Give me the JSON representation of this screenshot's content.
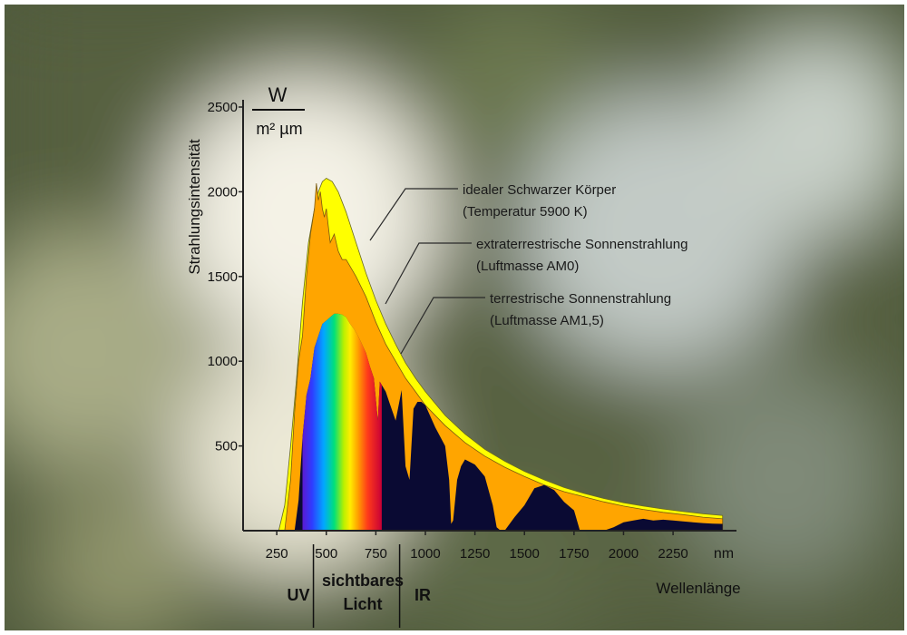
{
  "colors": {
    "blackbody": "#ffff00",
    "am0": "#ffa500",
    "am15": "#0a0a33",
    "axis": "#222222",
    "text": "#111111"
  },
  "chart_data": {
    "type": "area",
    "title": "",
    "unit_top": "W",
    "unit_bottom": "m² µm",
    "ylabel": "Strahlungsintensität",
    "xlabel": "Wellenlänge",
    "x_unit_label": "nm",
    "xlim": [
      80,
      2570
    ],
    "ylim": [
      0,
      2500
    ],
    "x_ticks": [
      {
        "value": 250,
        "label": "250"
      },
      {
        "value": 500,
        "label": "500"
      },
      {
        "value": 750,
        "label": "750"
      },
      {
        "value": 1000,
        "label": "1000"
      },
      {
        "value": 1250,
        "label": "1250"
      },
      {
        "value": 1500,
        "label": "1500"
      },
      {
        "value": 1750,
        "label": "1750"
      },
      {
        "value": 2000,
        "label": "2000"
      },
      {
        "value": 2250,
        "label": "2250"
      }
    ],
    "y_ticks": [
      {
        "value": 500,
        "label": "500"
      },
      {
        "value": 1000,
        "label": "1000"
      },
      {
        "value": 1500,
        "label": "1500"
      },
      {
        "value": 2000,
        "label": "2000"
      },
      {
        "value": 2500,
        "label": "2500"
      }
    ],
    "regions": [
      {
        "label": "UV",
        "from": 80,
        "to": 435
      },
      {
        "label": "sichtbares Licht",
        "from": 435,
        "to": 870
      },
      {
        "label": "IR",
        "from": 870,
        "to": 2570
      }
    ],
    "series": [
      {
        "name": "idealer Schwarzer Körper",
        "note": "(Temperatur 5900 K)",
        "color_key": "blackbody",
        "x": [
          260,
          290,
          320,
          350,
          380,
          410,
          440,
          460,
          480,
          500,
          530,
          560,
          600,
          650,
          700,
          750,
          800,
          850,
          900,
          950,
          1000,
          1100,
          1200,
          1300,
          1400,
          1500,
          1600,
          1700,
          1800,
          1900,
          2000,
          2100,
          2200,
          2300,
          2400,
          2500
        ],
        "y": [
          0,
          150,
          500,
          900,
          1350,
          1700,
          1900,
          2000,
          2060,
          2080,
          2060,
          2000,
          1880,
          1700,
          1520,
          1360,
          1220,
          1100,
          990,
          900,
          820,
          680,
          570,
          480,
          410,
          350,
          300,
          255,
          220,
          190,
          165,
          145,
          128,
          113,
          100,
          90
        ]
      },
      {
        "name": "extraterrestrische Sonnenstrahlung",
        "note": "(Luftmasse AM0)",
        "color_key": "am0",
        "x": [
          290,
          320,
          340,
          360,
          380,
          400,
          420,
          440,
          450,
          460,
          470,
          480,
          490,
          500,
          510,
          520,
          540,
          560,
          580,
          600,
          650,
          700,
          750,
          800,
          850,
          900,
          950,
          1000,
          1100,
          1200,
          1300,
          1400,
          1500,
          1600,
          1700,
          1800,
          1900,
          2000,
          2100,
          2200,
          2300,
          2400,
          2500
        ],
        "y": [
          0,
          300,
          700,
          1000,
          1150,
          1500,
          1750,
          1900,
          2050,
          1950,
          2000,
          1900,
          1850,
          1900,
          1800,
          1700,
          1750,
          1650,
          1600,
          1600,
          1500,
          1380,
          1230,
          1100,
          1000,
          900,
          820,
          740,
          620,
          520,
          440,
          375,
          320,
          270,
          230,
          200,
          170,
          145,
          125,
          108,
          95,
          80,
          70
        ]
      },
      {
        "name": "terrestrische Sonnenstrahlung",
        "note": "(Luftmasse AM1,5)",
        "color_key": "am15",
        "x": [
          340,
          360,
          380,
          400,
          420,
          440,
          460,
          480,
          500,
          520,
          540,
          560,
          580,
          600,
          620,
          640,
          660,
          680,
          700,
          720,
          740,
          760,
          770,
          780,
          800,
          820,
          850,
          870,
          880,
          900,
          920,
          940,
          960,
          980,
          1000,
          1050,
          1100,
          1120,
          1130,
          1140,
          1160,
          1180,
          1200,
          1250,
          1300,
          1340,
          1360,
          1380,
          1400,
          1450,
          1500,
          1550,
          1600,
          1650,
          1700,
          1750,
          1780,
          1800,
          1850,
          1900,
          1950,
          2000,
          2050,
          2100,
          2150,
          2200,
          2250,
          2300,
          2350,
          2400,
          2450,
          2500
        ],
        "y": [
          0,
          180,
          550,
          800,
          900,
          1080,
          1150,
          1220,
          1240,
          1260,
          1280,
          1280,
          1275,
          1260,
          1220,
          1190,
          1150,
          1100,
          1050,
          970,
          900,
          650,
          880,
          860,
          820,
          750,
          650,
          770,
          830,
          380,
          300,
          720,
          760,
          760,
          740,
          610,
          500,
          300,
          40,
          60,
          300,
          380,
          420,
          390,
          320,
          150,
          20,
          0,
          0,
          80,
          150,
          250,
          270,
          240,
          170,
          120,
          0,
          0,
          0,
          0,
          20,
          50,
          60,
          70,
          60,
          65,
          60,
          55,
          50,
          45,
          42,
          40
        ]
      }
    ],
    "visible_band": {
      "from": 380,
      "to": 780,
      "note": "Regenbogenfarben unter der terrestrischen Kurve"
    }
  }
}
